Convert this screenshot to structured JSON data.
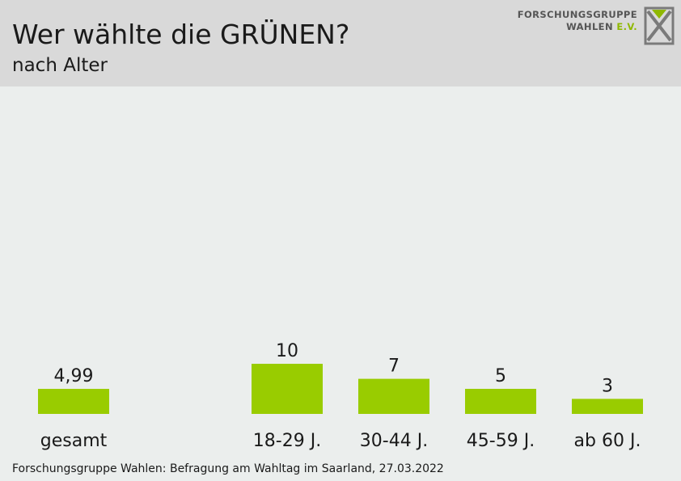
{
  "header": {
    "title": "Wer wählte die GRÜNEN?",
    "subtitle": "nach Alter",
    "logo_line1": "FORSCHUNGSGRUPPE",
    "logo_line2": "WAHLEN",
    "logo_ev": "E.V."
  },
  "footer": {
    "source": "Forschungsgruppe Wahlen: Befragung am Wahltag im Saarland, 27.03.2022"
  },
  "colors": {
    "bar": "#99cc00",
    "header_bg": "#d9d9d9",
    "plot_bg": "#ebeeed"
  },
  "chart_data": {
    "type": "bar",
    "categories": [
      "gesamt",
      "18-29 J.",
      "30-44 J.",
      "45-59 J.",
      "ab 60 J."
    ],
    "values": [
      4.99,
      10,
      7,
      5,
      3
    ],
    "value_labels": [
      "4,99",
      "10",
      "7",
      "5",
      "3"
    ],
    "title": "Wer wählte die GRÜNEN?",
    "subtitle": "nach Alter",
    "xlabel": "",
    "ylabel": "",
    "grid": false,
    "legend": "none"
  }
}
